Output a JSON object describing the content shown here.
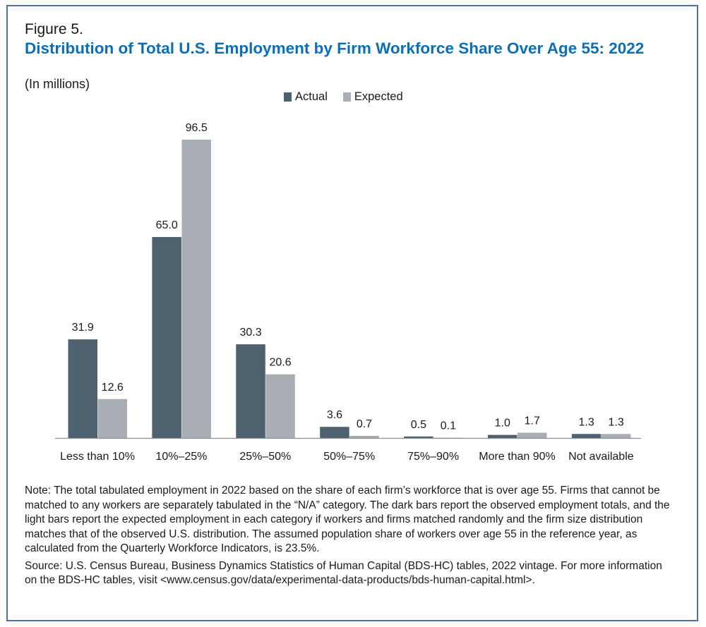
{
  "figure_label": "Figure 5.",
  "chart_data": {
    "type": "bar",
    "title": "Distribution of Total U.S. Employment by Firm Workforce Share Over Age 55: 2022",
    "subtitle": "(In millions)",
    "categories": [
      "Less than 10%",
      "10%–25%",
      "25%–50%",
      "50%–75%",
      "75%–90%",
      "More than 90%",
      "Not available"
    ],
    "series": [
      {
        "name": "Actual",
        "color": "#4d616e",
        "values": [
          31.9,
          65.0,
          30.3,
          3.6,
          0.5,
          1.0,
          1.3
        ],
        "labels": [
          "31.9",
          "65.0",
          "30.3",
          "3.6",
          "0.5",
          "1.0",
          "1.3"
        ]
      },
      {
        "name": "Expected",
        "color": "#a9aeb4",
        "values": [
          12.6,
          96.5,
          20.6,
          0.7,
          0.1,
          1.7,
          1.3
        ],
        "labels": [
          "12.6",
          "96.5",
          "20.6",
          "0.7",
          "0.1",
          "1.7",
          "1.3"
        ]
      }
    ],
    "ylim": [
      0,
      100
    ],
    "grid": false,
    "legend": "top-center"
  },
  "notes": {
    "note": "Note: The total tabulated employment in 2022 based on the share of each firm’s workforce that is over age 55. Firms that cannot be matched to any workers are separately tabulated in the “N/A” category. The dark bars report the observed employment totals, and the light bars report the expected employment in each category if workers and firms matched randomly and the firm size distribution matches that of the observed U.S. distribution. The assumed population share of workers over age 55 in the reference year, as calculated from the Quarterly Workforce Indicators, is 23.5%.",
    "source": "Source: U.S. Census Bureau, Business Dynamics Statistics of Human Capital (BDS-HC) tables, 2022 vintage. For more information on the BDS-HC tables, visit <www.census.gov/data/experimental-data-products/bds-human-capital.html>."
  }
}
